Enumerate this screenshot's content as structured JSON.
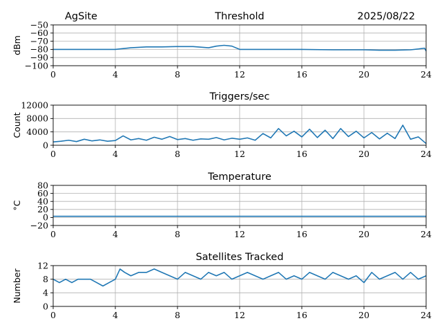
{
  "header": {
    "site": "AgSite",
    "date": "2025/08/22"
  },
  "colors": {
    "series": "#1f77b4",
    "grid": "#b0b0b0",
    "axis": "#000000"
  },
  "chart_data": [
    {
      "type": "line",
      "title": "Threshold",
      "xlabel": "",
      "ylabel": "dBm",
      "xlim": [
        0,
        24
      ],
      "ylim": [
        -100,
        -50
      ],
      "xticks": [
        0,
        4,
        8,
        12,
        16,
        20,
        24
      ],
      "yticks": [
        -50,
        -60,
        -70,
        -80,
        -90,
        -100
      ],
      "ytick_labels": [
        "−50",
        "−60",
        "−70",
        "−80",
        "−90",
        "−100"
      ],
      "grid": true,
      "series": [
        {
          "x": [
            0,
            2,
            4,
            5,
            6,
            7,
            8,
            9,
            10,
            10.5,
            11,
            11.5,
            12,
            13,
            14,
            16,
            18,
            20,
            21,
            22,
            23,
            23.5,
            23.9,
            24
          ],
          "values": [
            -80,
            -80,
            -80,
            -78,
            -77,
            -77,
            -76.5,
            -76.5,
            -78,
            -76,
            -75,
            -76,
            -80,
            -80,
            -80,
            -80,
            -80.5,
            -80.5,
            -81,
            -81,
            -80.5,
            -79.5,
            -78.5,
            -82
          ]
        }
      ]
    },
    {
      "type": "line",
      "title": "Triggers/sec",
      "xlabel": "",
      "ylabel": "Count",
      "xlim": [
        0,
        24
      ],
      "ylim": [
        0,
        12000
      ],
      "xticks": [
        0,
        4,
        8,
        12,
        16,
        20,
        24
      ],
      "yticks": [
        0,
        4000,
        8000,
        12000
      ],
      "grid": true,
      "series": [
        {
          "x": [
            0,
            0.5,
            1,
            1.5,
            2,
            2.5,
            3,
            3.5,
            4,
            4.5,
            5,
            5.5,
            6,
            6.5,
            7,
            7.5,
            8,
            8.5,
            9,
            9.5,
            10,
            10.5,
            11,
            11.5,
            12,
            12.5,
            13,
            13.5,
            14,
            14.5,
            15,
            15.5,
            16,
            16.5,
            17,
            17.5,
            18,
            18.5,
            19,
            19.5,
            20,
            20.5,
            21,
            21.5,
            22,
            22.5,
            23,
            23.5,
            24
          ],
          "values": [
            1000,
            1200,
            1500,
            1100,
            1800,
            1300,
            1600,
            1200,
            1400,
            2800,
            1600,
            2000,
            1500,
            2400,
            1800,
            2600,
            1700,
            2000,
            1500,
            1900,
            1800,
            2300,
            1600,
            2100,
            1800,
            2200,
            1500,
            3500,
            2200,
            5000,
            2800,
            4200,
            2500,
            4800,
            2300,
            4500,
            2000,
            5000,
            2600,
            4200,
            2200,
            3800,
            1900,
            3600,
            2000,
            6000,
            1800,
            2500,
            500
          ]
        }
      ]
    },
    {
      "type": "line",
      "title": "Temperature",
      "xlabel": "",
      "ylabel": "°C",
      "xlim": [
        0,
        24
      ],
      "ylim": [
        -20,
        80
      ],
      "xticks": [
        0,
        4,
        8,
        12,
        16,
        20,
        24
      ],
      "yticks": [
        -20,
        0,
        20,
        40,
        60,
        80
      ],
      "ytick_labels": [
        "−20",
        "0",
        "20",
        "40",
        "60",
        "80"
      ],
      "grid": true,
      "series": [
        {
          "x": [
            0,
            24
          ],
          "values": [
            3,
            3
          ]
        }
      ]
    },
    {
      "type": "line",
      "title": "Satellites Tracked",
      "xlabel": "",
      "ylabel": "Number",
      "xlim": [
        0,
        24
      ],
      "ylim": [
        0,
        12
      ],
      "xticks": [
        0,
        4,
        8,
        12,
        16,
        20,
        24
      ],
      "yticks": [
        0,
        4,
        8,
        12
      ],
      "grid": true,
      "series": [
        {
          "x": [
            0,
            0.4,
            0.8,
            1.2,
            1.6,
            2.0,
            2.4,
            2.8,
            3.2,
            3.6,
            4.0,
            4.3,
            4.6,
            5.0,
            5.5,
            6.0,
            6.5,
            7.0,
            7.5,
            8.0,
            8.5,
            9.0,
            9.5,
            10.0,
            10.5,
            11.0,
            11.5,
            12.0,
            12.5,
            13.0,
            13.5,
            14.0,
            14.5,
            15.0,
            15.5,
            16.0,
            16.5,
            17.0,
            17.5,
            18.0,
            18.5,
            19.0,
            19.5,
            20.0,
            20.5,
            21.0,
            21.5,
            22.0,
            22.5,
            23.0,
            23.5,
            24
          ],
          "values": [
            8,
            7,
            8,
            7,
            8,
            8,
            8,
            7,
            6,
            7,
            8,
            11,
            10,
            9,
            10,
            10,
            11,
            10,
            9,
            8,
            10,
            9,
            8,
            10,
            9,
            10,
            8,
            9,
            10,
            9,
            8,
            9,
            10,
            8,
            9,
            8,
            10,
            9,
            8,
            10,
            9,
            8,
            9,
            7,
            10,
            8,
            9,
            10,
            8,
            10,
            8,
            9
          ]
        }
      ]
    }
  ]
}
